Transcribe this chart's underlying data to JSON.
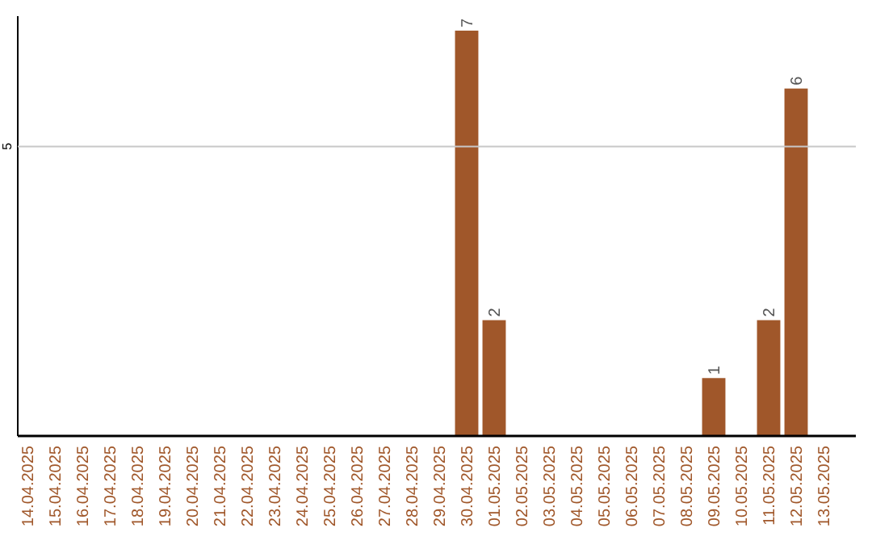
{
  "chart_data": {
    "type": "bar",
    "categories": [
      "14.04.2025",
      "15.04.2025",
      "16.04.2025",
      "17.04.2025",
      "18.04.2025",
      "19.04.2025",
      "20.04.2025",
      "21.04.2025",
      "22.04.2025",
      "23.04.2025",
      "24.04.2025",
      "25.04.2025",
      "26.04.2025",
      "27.04.2025",
      "28.04.2025",
      "29.04.2025",
      "30.04.2025",
      "01.05.2025",
      "02.05.2025",
      "03.05.2025",
      "04.05.2025",
      "05.05.2025",
      "06.05.2025",
      "07.05.2025",
      "08.05.2025",
      "09.05.2025",
      "10.05.2025",
      "11.05.2025",
      "12.05.2025",
      "13.05.2025"
    ],
    "values": [
      null,
      null,
      null,
      null,
      null,
      null,
      null,
      null,
      null,
      null,
      null,
      null,
      null,
      null,
      null,
      null,
      7,
      2,
      null,
      null,
      null,
      null,
      null,
      null,
      null,
      1,
      null,
      2,
      6,
      null
    ],
    "data_labels": true,
    "color": "#a0572a",
    "ylim": [
      0,
      7.25
    ],
    "ref_lines": [
      {
        "axis": "y",
        "value": 5,
        "label": "5",
        "color": "#c8c8c8"
      }
    ]
  }
}
